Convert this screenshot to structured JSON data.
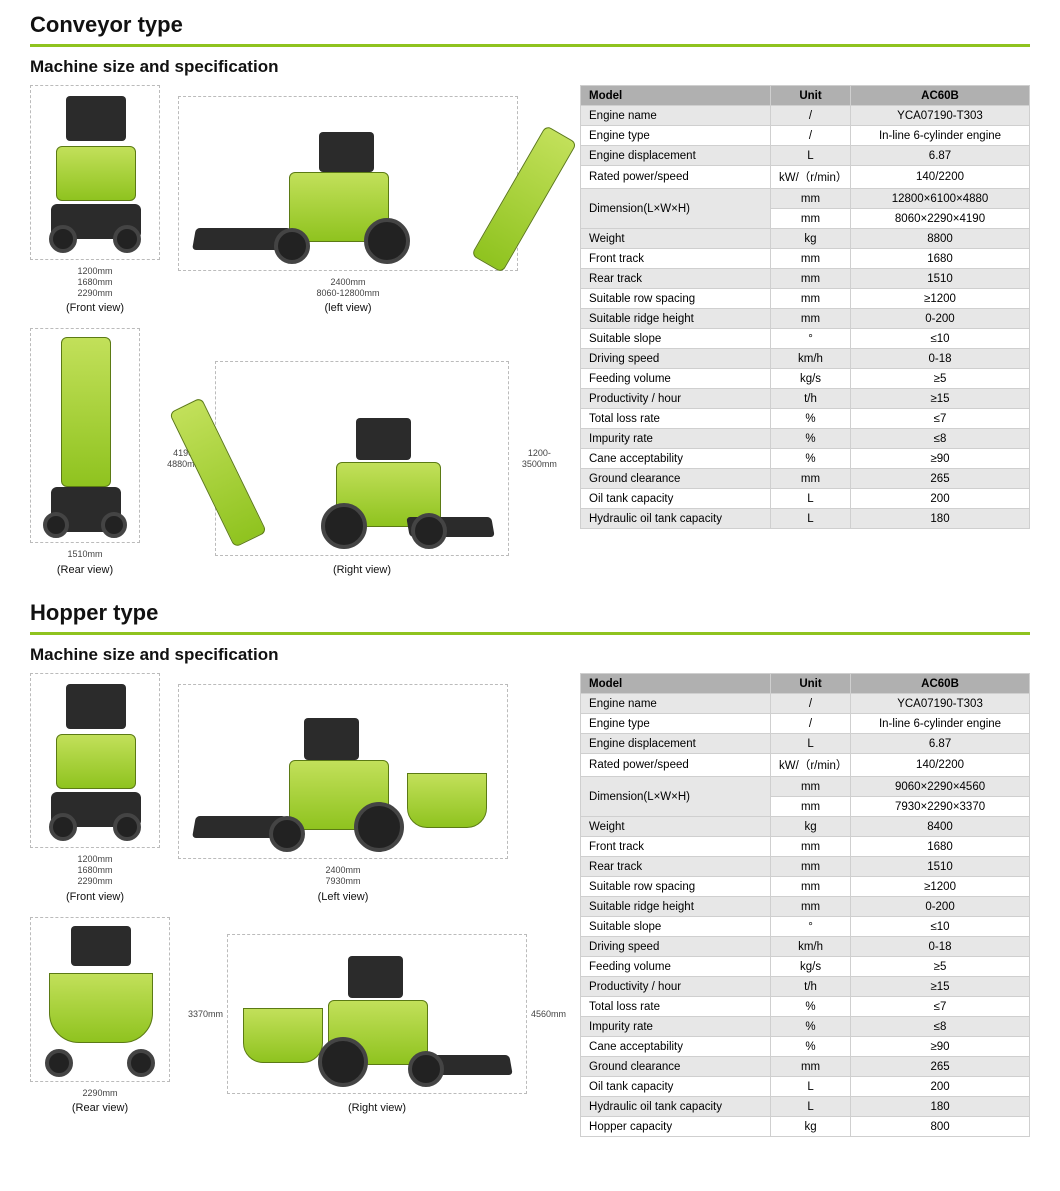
{
  "colors": {
    "accent": "#8fc31f",
    "header_bg": "#b0b0b0",
    "row_alt_bg": "#e7e7e7",
    "text": "#000000",
    "border": "#cfcfcf"
  },
  "sections": {
    "conveyor": {
      "title": "Conveyor type",
      "subtitle": "Machine size and specification",
      "views": {
        "front": {
          "label": "(Front view)",
          "dims_below": [
            "1200mm",
            "1680mm",
            "2290mm"
          ]
        },
        "left": {
          "label": "(left view)",
          "dims_below": [
            "2400mm",
            "8060-12800mm"
          ]
        },
        "rear": {
          "label": "(Rear view)",
          "dims_below": [
            "1510mm"
          ]
        },
        "right": {
          "label": "(Right view)",
          "dim_left": "4190-4880mm",
          "dim_right": "1200-3500mm"
        }
      },
      "table": {
        "headers": [
          "Model",
          "Unit",
          "AC60B"
        ],
        "rows": [
          {
            "label": "Engine name",
            "unit": "/",
            "value": "YCA07190-T303"
          },
          {
            "label": "Engine type",
            "unit": "/",
            "value": "In-line 6-cylinder engine"
          },
          {
            "label": "Engine displacement",
            "unit": "L",
            "value": "6.87"
          },
          {
            "label": "Rated power/speed",
            "unit": "kW/（r/min）",
            "value": "140/2200"
          },
          {
            "label": "Dimension(L×W×H)",
            "unit": "mm",
            "value": "12800×6100×4880",
            "rowspan": 2
          },
          {
            "label": "",
            "unit": "mm",
            "value": "8060×2290×4190",
            "merge": true
          },
          {
            "label": "Weight",
            "unit": "kg",
            "value": "8800"
          },
          {
            "label": "Front track",
            "unit": "mm",
            "value": "1680"
          },
          {
            "label": "Rear track",
            "unit": "mm",
            "value": "1510"
          },
          {
            "label": "Suitable row spacing",
            "unit": "mm",
            "value": "≥1200"
          },
          {
            "label": "Suitable ridge height",
            "unit": "mm",
            "value": "0-200"
          },
          {
            "label": "Suitable slope",
            "unit": "°",
            "value": "≤10"
          },
          {
            "label": "Driving speed",
            "unit": "km/h",
            "value": "0-18"
          },
          {
            "label": "Feeding volume",
            "unit": "kg/s",
            "value": "≥5"
          },
          {
            "label": "Productivity / hour",
            "unit": "t/h",
            "value": "≥15"
          },
          {
            "label": "Total loss rate",
            "unit": "%",
            "value": "≤7"
          },
          {
            "label": "Impurity rate",
            "unit": "%",
            "value": "≤8"
          },
          {
            "label": "Cane acceptability",
            "unit": "%",
            "value": "≥90"
          },
          {
            "label": "Ground clearance",
            "unit": "mm",
            "value": "265"
          },
          {
            "label": "Oil tank capacity",
            "unit": "L",
            "value": "200"
          },
          {
            "label": "Hydraulic oil tank capacity",
            "unit": "L",
            "value": "180"
          }
        ]
      }
    },
    "hopper": {
      "title": "Hopper type",
      "subtitle": "Machine size and specification",
      "views": {
        "front": {
          "label": "(Front view)",
          "dims_below": [
            "1200mm",
            "1680mm",
            "2290mm"
          ]
        },
        "left": {
          "label": "(Left view)",
          "dims_below": [
            "2400mm",
            "7930mm"
          ]
        },
        "rear": {
          "label": "(Rear view)",
          "dims_below": [
            "2290mm"
          ]
        },
        "right": {
          "label": "(Right view)",
          "dim_left": "3370mm",
          "dim_right": "4560mm"
        }
      },
      "table": {
        "headers": [
          "Model",
          "Unit",
          "AC60B"
        ],
        "rows": [
          {
            "label": "Engine name",
            "unit": "/",
            "value": "YCA07190-T303"
          },
          {
            "label": "Engine type",
            "unit": "/",
            "value": "In-line 6-cylinder engine"
          },
          {
            "label": "Engine displacement",
            "unit": "L",
            "value": "6.87"
          },
          {
            "label": "Rated power/speed",
            "unit": "kW/（r/min）",
            "value": "140/2200"
          },
          {
            "label": "Dimension(L×W×H)",
            "unit": "mm",
            "value": "9060×2290×4560",
            "rowspan": 2
          },
          {
            "label": "",
            "unit": "mm",
            "value": "7930×2290×3370",
            "merge": true
          },
          {
            "label": "Weight",
            "unit": "kg",
            "value": "8400"
          },
          {
            "label": "Front track",
            "unit": "mm",
            "value": "1680"
          },
          {
            "label": "Rear track",
            "unit": "mm",
            "value": "1510"
          },
          {
            "label": "Suitable row spacing",
            "unit": "mm",
            "value": "≥1200"
          },
          {
            "label": "Suitable ridge height",
            "unit": "mm",
            "value": "0-200"
          },
          {
            "label": "Suitable slope",
            "unit": "°",
            "value": "≤10"
          },
          {
            "label": "Driving speed",
            "unit": "km/h",
            "value": "0-18"
          },
          {
            "label": "Feeding volume",
            "unit": "kg/s",
            "value": "≥5"
          },
          {
            "label": "Productivity / hour",
            "unit": "t/h",
            "value": "≥15"
          },
          {
            "label": "Total loss rate",
            "unit": "%",
            "value": "≤7"
          },
          {
            "label": "Impurity rate",
            "unit": "%",
            "value": "≤8"
          },
          {
            "label": "Cane acceptability",
            "unit": "%",
            "value": "≥90"
          },
          {
            "label": "Ground clearance",
            "unit": "mm",
            "value": "265"
          },
          {
            "label": "Oil tank capacity",
            "unit": "L",
            "value": "200"
          },
          {
            "label": "Hydraulic oil tank capacity",
            "unit": "L",
            "value": "180"
          },
          {
            "label": "Hopper capacity",
            "unit": "kg",
            "value": "800"
          }
        ]
      }
    }
  }
}
